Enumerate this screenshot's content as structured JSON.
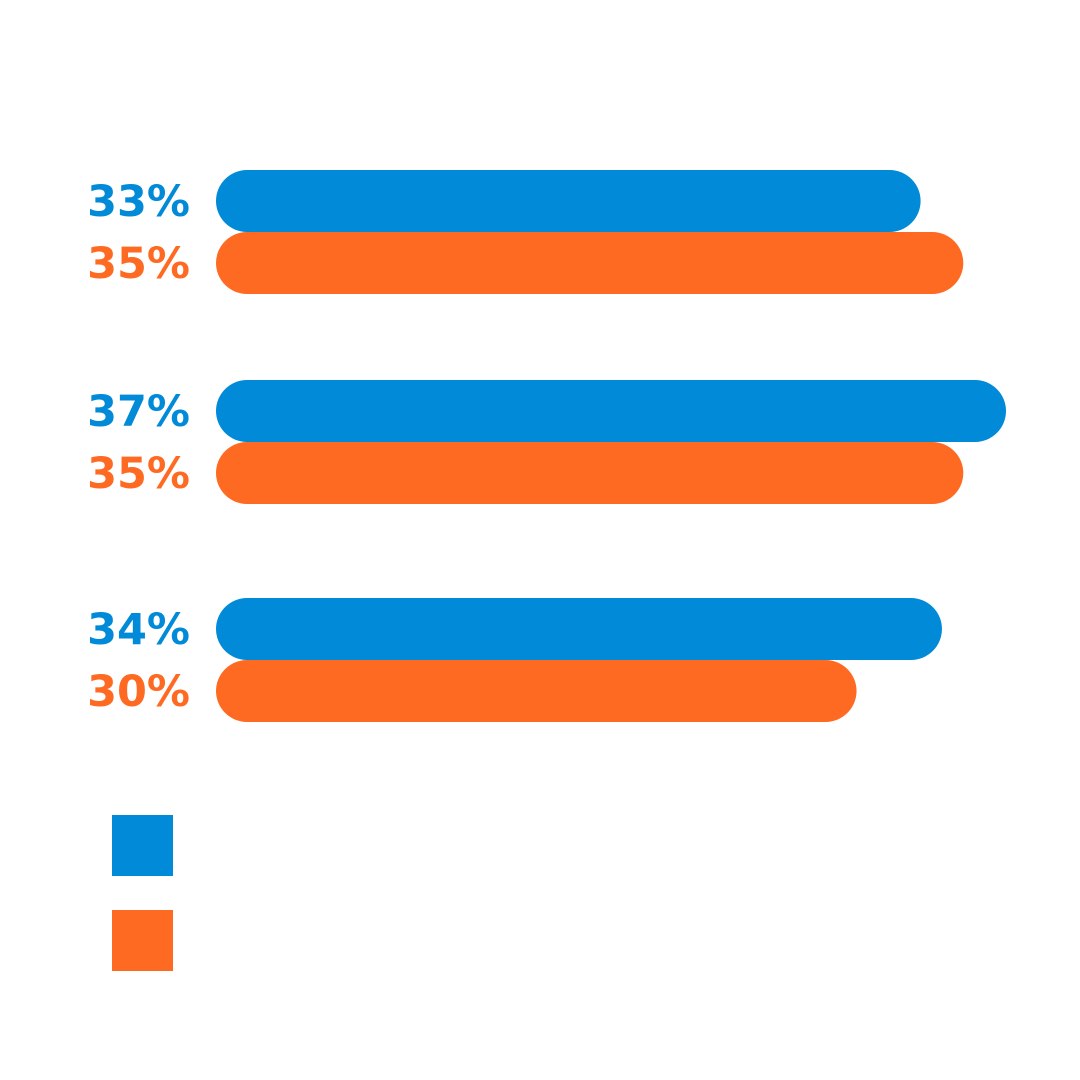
{
  "chart_data": {
    "type": "bar",
    "orientation": "horizontal",
    "grouped": true,
    "categories": [
      "",
      "",
      ""
    ],
    "series": [
      {
        "color": "#008ad8",
        "values": [
          33,
          37,
          34
        ],
        "labels": [
          "33%",
          "37%",
          "34%"
        ]
      },
      {
        "color": "#ff6a22",
        "values": [
          35,
          35,
          30
        ],
        "labels": [
          "35%",
          "35%",
          "30%"
        ]
      }
    ],
    "xlim": [
      0,
      37
    ],
    "title": "",
    "xlabel": "",
    "ylabel": "",
    "grid": false,
    "legend": {
      "placement": "bottom-left",
      "entries": [
        {
          "color": "#008ad8",
          "label": ""
        },
        {
          "color": "#ff6a22",
          "label": ""
        }
      ]
    }
  }
}
